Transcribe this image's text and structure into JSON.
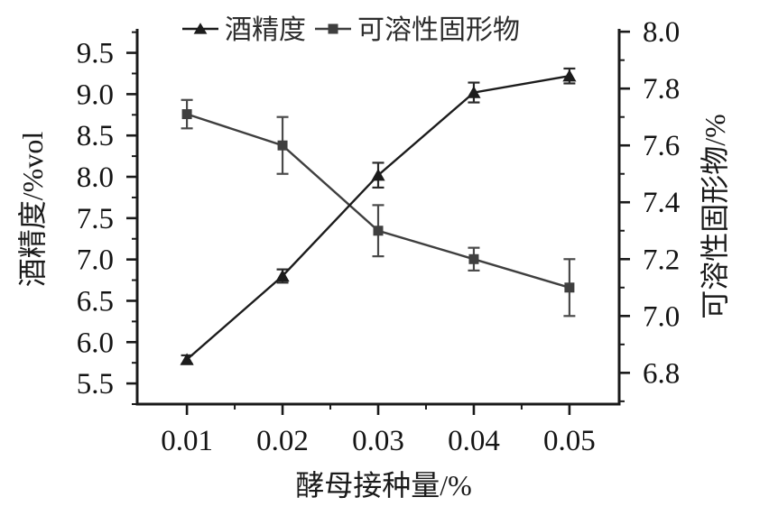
{
  "chart_data": {
    "type": "line",
    "title": "",
    "xlabel": "酵母接种量/%",
    "ylabel_left": "酒精度/%vol",
    "ylabel_right": "可溶性固形物/%",
    "x": [
      0.01,
      0.02,
      0.03,
      0.04,
      0.05
    ],
    "series": [
      {
        "name": "酒精度",
        "axis": "left",
        "marker": "triangle",
        "color": "#1c1c1c",
        "error_color": "#2a2a2a",
        "values": [
          5.79,
          6.8,
          8.02,
          9.02,
          9.22
        ],
        "errors": [
          0.05,
          0.08,
          0.15,
          0.12,
          0.09
        ]
      },
      {
        "name": "可溶性固形物",
        "axis": "right",
        "marker": "square",
        "color": "#3f3f3f",
        "error_color": "#4a4a4a",
        "values": [
          7.71,
          7.6,
          7.3,
          7.2,
          7.1
        ],
        "errors": [
          0.05,
          0.1,
          0.09,
          0.04,
          0.1
        ]
      }
    ],
    "axes": {
      "x": {
        "min": 0.0048,
        "max": 0.0552,
        "major": [
          0.01,
          0.02,
          0.03,
          0.04,
          0.05
        ],
        "labels": [
          "0.01",
          "0.02",
          "0.03",
          "0.04",
          "0.05"
        ],
        "minor": [
          0.015,
          0.025,
          0.035,
          0.045
        ]
      },
      "left": {
        "min": 5.25,
        "max": 9.79,
        "major": [
          5.5,
          6.0,
          6.5,
          7.0,
          7.5,
          8.0,
          8.5,
          9.0,
          9.5
        ],
        "labels": [
          "5.5",
          "6.0",
          "6.5",
          "7.0",
          "7.5",
          "8.0",
          "8.5",
          "9.0",
          "9.5"
        ],
        "minor_step": 0.25
      },
      "right": {
        "min": 6.69,
        "max": 8.01,
        "major": [
          6.8,
          7.0,
          7.2,
          7.4,
          7.6,
          7.8,
          8.0
        ],
        "labels": [
          "6.8",
          "7.0",
          "7.2",
          "7.4",
          "7.6",
          "7.8",
          "8.0"
        ],
        "minor_step": 0.1
      }
    },
    "grid": false,
    "legend_position": "top",
    "colors": {
      "axis": "#1a1a1a",
      "background": "#ffffff"
    }
  }
}
